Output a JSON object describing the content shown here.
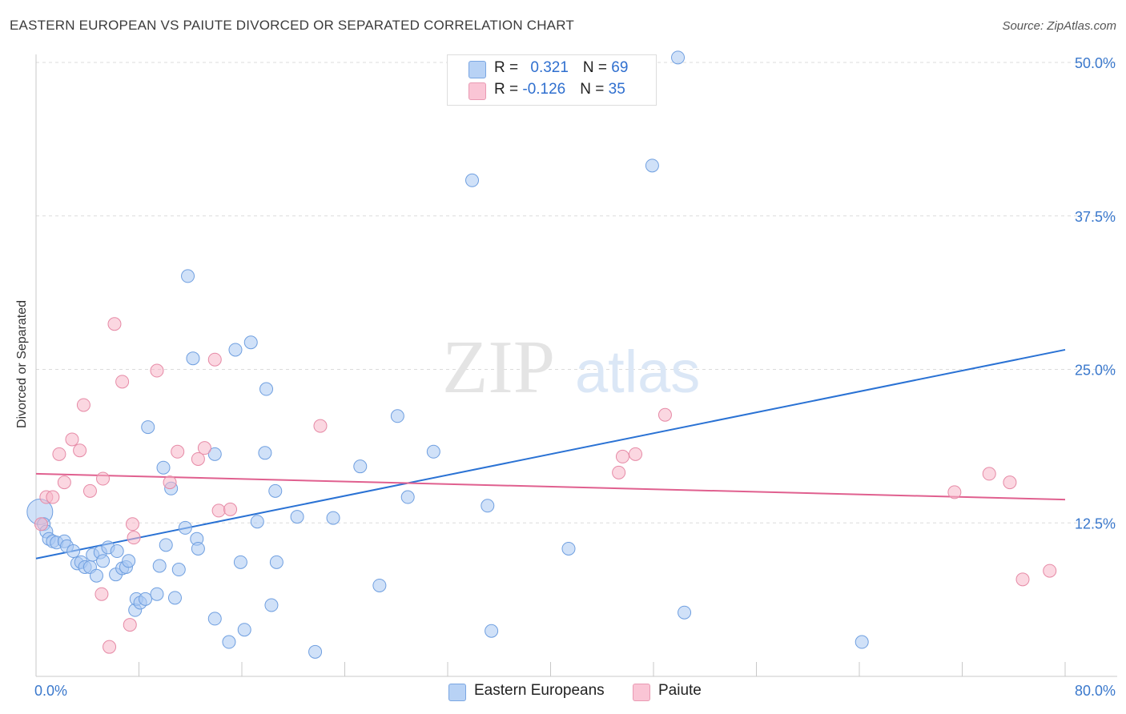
{
  "header": {
    "title": "EASTERN EUROPEAN VS PAIUTE DIVORCED OR SEPARATED CORRELATION CHART",
    "source": "Source: ZipAtlas.com"
  },
  "watermark": {
    "zip": "ZIP",
    "atlas": "atlas"
  },
  "legend": {
    "series1": {
      "r_label": "R = ",
      "r_value": "0.321",
      "n_label": "N = ",
      "n_value": "69"
    },
    "series2": {
      "r_label": "R = ",
      "r_value": "-0.126",
      "n_label": "N = ",
      "n_value": "35"
    }
  },
  "bottom_legend": {
    "series1": "Eastern Europeans",
    "series2": "Paiute"
  },
  "colors": {
    "blue_fill": "#a9c8f2",
    "blue_stroke": "#6f9fe0",
    "blue_line": "#2a72d4",
    "pink_fill": "#f7b6c9",
    "pink_stroke": "#e68aa6",
    "pink_line": "#e0608f",
    "axis_text": "#3a78cc",
    "grid": "#dcdcdc"
  },
  "chart_data": {
    "type": "scatter",
    "title": "EASTERN EUROPEAN VS PAIUTE DIVORCED OR SEPARATED CORRELATION CHART",
    "xlabel": "",
    "ylabel": "Divorced or Separated",
    "xlim": [
      0,
      80
    ],
    "ylim": [
      0,
      50
    ],
    "x_tick_labels": [
      "0.0%",
      "80.0%"
    ],
    "y_ticks": [
      12.5,
      25.0,
      37.5,
      50.0
    ],
    "y_tick_labels": [
      "12.5%",
      "25.0%",
      "37.5%",
      "50.0%"
    ],
    "grid": true,
    "series": [
      {
        "name": "Eastern Europeans",
        "color": "#a9c8f2",
        "r": 0.321,
        "n": 69,
        "trend": {
          "x": [
            0,
            80
          ],
          "y": [
            9.6,
            26.6
          ]
        },
        "points": [
          [
            0.3,
            13.4
          ],
          [
            0.6,
            12.4
          ],
          [
            0.8,
            11.8
          ],
          [
            1.0,
            11.2
          ],
          [
            1.3,
            11.0
          ],
          [
            1.6,
            10.9
          ],
          [
            2.2,
            11.0
          ],
          [
            2.4,
            10.6
          ],
          [
            2.9,
            10.2
          ],
          [
            3.2,
            9.2
          ],
          [
            3.5,
            9.3
          ],
          [
            3.8,
            8.9
          ],
          [
            4.2,
            8.9
          ],
          [
            4.7,
            8.2
          ],
          [
            4.4,
            9.9
          ],
          [
            5.0,
            10.1
          ],
          [
            5.2,
            9.4
          ],
          [
            5.6,
            10.5
          ],
          [
            6.2,
            8.3
          ],
          [
            6.3,
            10.2
          ],
          [
            6.7,
            8.8
          ],
          [
            7.0,
            8.9
          ],
          [
            7.2,
            9.4
          ],
          [
            7.7,
            5.4
          ],
          [
            7.8,
            6.3
          ],
          [
            8.1,
            6.0
          ],
          [
            8.5,
            6.3
          ],
          [
            8.7,
            20.3
          ],
          [
            9.4,
            6.7
          ],
          [
            9.6,
            9.0
          ],
          [
            9.9,
            17.0
          ],
          [
            10.1,
            10.7
          ],
          [
            10.5,
            15.3
          ],
          [
            10.8,
            6.4
          ],
          [
            11.1,
            8.7
          ],
          [
            11.6,
            12.1
          ],
          [
            11.8,
            32.6
          ],
          [
            12.2,
            25.9
          ],
          [
            12.5,
            11.2
          ],
          [
            12.6,
            10.4
          ],
          [
            13.9,
            4.7
          ],
          [
            13.9,
            18.1
          ],
          [
            15.0,
            2.8
          ],
          [
            15.5,
            26.6
          ],
          [
            15.9,
            9.3
          ],
          [
            16.2,
            3.8
          ],
          [
            16.7,
            27.2
          ],
          [
            17.2,
            12.6
          ],
          [
            17.8,
            18.2
          ],
          [
            17.9,
            23.4
          ],
          [
            18.3,
            5.8
          ],
          [
            18.6,
            15.1
          ],
          [
            18.7,
            9.3
          ],
          [
            20.3,
            13.0
          ],
          [
            21.7,
            2.0
          ],
          [
            23.1,
            12.9
          ],
          [
            25.2,
            17.1
          ],
          [
            26.7,
            7.4
          ],
          [
            28.1,
            21.2
          ],
          [
            28.9,
            14.6
          ],
          [
            30.9,
            18.3
          ],
          [
            33.9,
            40.4
          ],
          [
            35.1,
            13.9
          ],
          [
            35.4,
            3.7
          ],
          [
            41.4,
            10.4
          ],
          [
            47.9,
            41.6
          ],
          [
            49.9,
            50.4
          ],
          [
            50.4,
            5.2
          ],
          [
            64.2,
            2.8
          ]
        ]
      },
      {
        "name": "Paiute",
        "color": "#f7b6c9",
        "r": -0.126,
        "n": 35,
        "trend": {
          "x": [
            0,
            80
          ],
          "y": [
            16.5,
            14.4
          ]
        },
        "points": [
          [
            0.4,
            12.4
          ],
          [
            0.8,
            14.6
          ],
          [
            1.3,
            14.6
          ],
          [
            1.8,
            18.1
          ],
          [
            2.2,
            15.8
          ],
          [
            2.8,
            19.3
          ],
          [
            3.4,
            18.4
          ],
          [
            3.7,
            22.1
          ],
          [
            4.2,
            15.1
          ],
          [
            5.1,
            6.7
          ],
          [
            5.2,
            16.1
          ],
          [
            5.7,
            2.4
          ],
          [
            6.1,
            28.7
          ],
          [
            6.7,
            24.0
          ],
          [
            7.3,
            4.2
          ],
          [
            7.5,
            12.4
          ],
          [
            7.6,
            11.3
          ],
          [
            9.4,
            24.9
          ],
          [
            10.4,
            15.8
          ],
          [
            11.0,
            18.3
          ],
          [
            12.6,
            17.7
          ],
          [
            13.1,
            18.6
          ],
          [
            13.9,
            25.8
          ],
          [
            14.2,
            13.5
          ],
          [
            15.1,
            13.6
          ],
          [
            22.1,
            20.4
          ],
          [
            45.3,
            16.6
          ],
          [
            45.6,
            17.9
          ],
          [
            46.6,
            18.1
          ],
          [
            48.9,
            21.3
          ],
          [
            71.4,
            15.0
          ],
          [
            74.1,
            16.5
          ],
          [
            75.7,
            15.8
          ],
          [
            76.7,
            7.9
          ],
          [
            78.8,
            8.6
          ]
        ]
      }
    ]
  }
}
